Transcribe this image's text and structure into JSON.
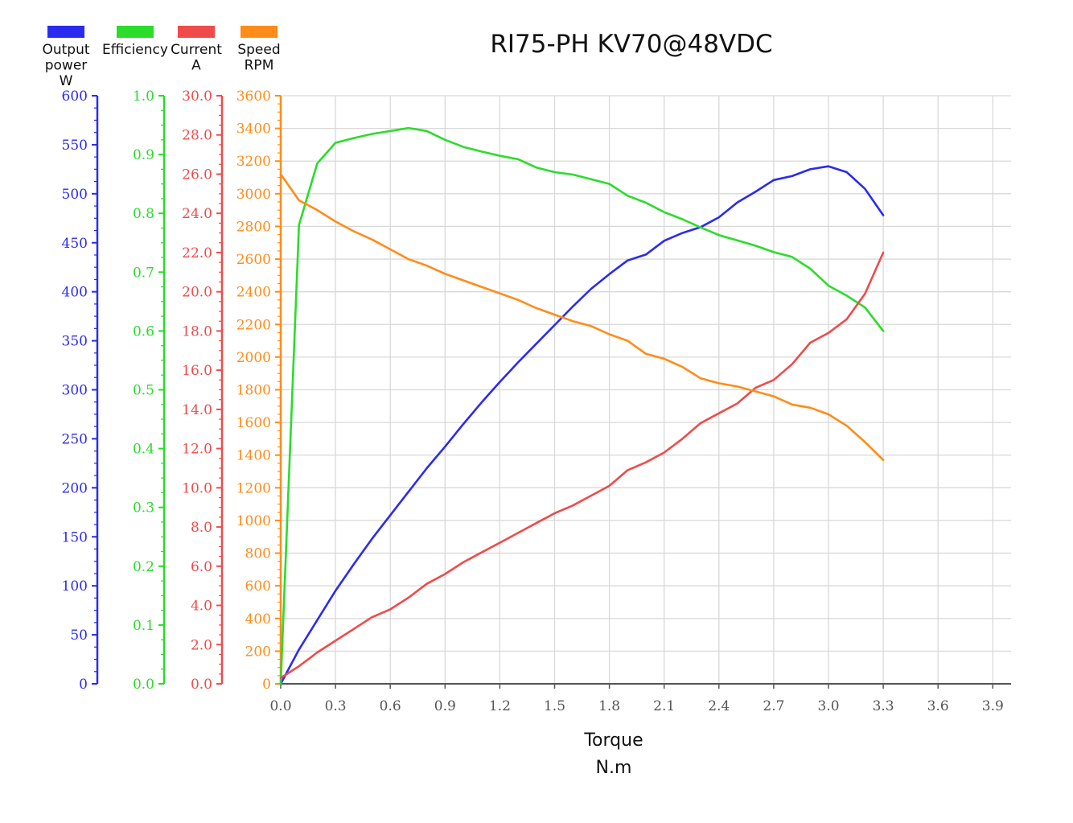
{
  "chart_data": {
    "type": "line",
    "title": "RI75-PH KV70@48VDC",
    "xlabel": [
      "Torque",
      "N.m"
    ],
    "x_ticks": [
      "0.0",
      "0.3",
      "0.6",
      "0.9",
      "1.2",
      "1.5",
      "1.8",
      "2.1",
      "2.4",
      "2.7",
      "3.0",
      "3.3",
      "3.6",
      "3.9"
    ],
    "xlim": [
      0,
      4.0
    ],
    "grid": true,
    "legend_position": "top-left",
    "axes": [
      {
        "id": "power",
        "label_lines": [
          "Output",
          "power",
          "W"
        ],
        "color": "#2b2bf0",
        "ylim": [
          0,
          600
        ],
        "ticks": [
          "0",
          "50",
          "100",
          "150",
          "200",
          "250",
          "300",
          "350",
          "400",
          "450",
          "500",
          "550",
          "600"
        ]
      },
      {
        "id": "efficiency",
        "label_lines": [
          "Efficiency"
        ],
        "color": "#2bdc2b",
        "ylim": [
          0,
          1.0
        ],
        "ticks": [
          "0.0",
          "0.1",
          "0.2",
          "0.3",
          "0.4",
          "0.5",
          "0.6",
          "0.7",
          "0.8",
          "0.9",
          "1.0"
        ]
      },
      {
        "id": "current",
        "label_lines": [
          "Current",
          "A"
        ],
        "color": "#f04b4b",
        "ylim": [
          0,
          30
        ],
        "ticks": [
          "0.0",
          "2.0",
          "4.0",
          "6.0",
          "8.0",
          "10.0",
          "12.0",
          "14.0",
          "16.0",
          "18.0",
          "20.0",
          "22.0",
          "24.0",
          "26.0",
          "28.0",
          "30.0"
        ]
      },
      {
        "id": "speed",
        "label_lines": [
          "Speed",
          "RPM"
        ],
        "color": "#ff8c1a",
        "ylim": [
          0,
          3600
        ],
        "ticks": [
          "0",
          "200",
          "400",
          "600",
          "800",
          "1000",
          "1200",
          "1400",
          "1600",
          "1800",
          "2000",
          "2200",
          "2400",
          "2600",
          "2800",
          "3000",
          "3200",
          "3400",
          "3600"
        ]
      }
    ],
    "series": [
      {
        "name": "Output power",
        "axis": "power",
        "color": "#2b2bf0",
        "x": [
          0,
          0.1,
          0.2,
          0.3,
          0.4,
          0.5,
          0.6,
          0.7,
          0.8,
          0.9,
          1.0,
          1.1,
          1.2,
          1.3,
          1.4,
          1.5,
          1.6,
          1.7,
          1.8,
          1.9,
          2.0,
          2.1,
          2.2,
          2.3,
          2.4,
          2.5,
          2.6,
          2.7,
          2.8,
          2.9,
          3.0,
          3.1,
          3.2,
          3.3
        ],
        "y": [
          0,
          35,
          65,
          95,
          122,
          148,
          172,
          196,
          220,
          242,
          265,
          287,
          308,
          328,
          347,
          366,
          385,
          403,
          418,
          432,
          438,
          452,
          460,
          466,
          476,
          491,
          502,
          514,
          518,
          525,
          528,
          522,
          505,
          478
        ]
      },
      {
        "name": "Efficiency",
        "axis": "efficiency",
        "color": "#2bdc2b",
        "x": [
          0,
          0.1,
          0.2,
          0.3,
          0.4,
          0.5,
          0.6,
          0.7,
          0.8,
          0.9,
          1.0,
          1.1,
          1.2,
          1.3,
          1.4,
          1.5,
          1.6,
          1.7,
          1.8,
          1.9,
          2.0,
          2.1,
          2.2,
          2.3,
          2.4,
          2.5,
          2.6,
          2.7,
          2.8,
          2.9,
          3.0,
          3.1,
          3.2,
          3.3
        ],
        "y": [
          0,
          0.78,
          0.885,
          0.92,
          0.928,
          0.935,
          0.94,
          0.945,
          0.94,
          0.925,
          0.913,
          0.905,
          0.898,
          0.892,
          0.878,
          0.87,
          0.866,
          0.858,
          0.85,
          0.83,
          0.818,
          0.802,
          0.79,
          0.776,
          0.763,
          0.754,
          0.745,
          0.734,
          0.726,
          0.706,
          0.677,
          0.66,
          0.64,
          0.6
        ]
      },
      {
        "name": "Current",
        "axis": "current",
        "color": "#f04b4b",
        "x": [
          0,
          0.1,
          0.2,
          0.3,
          0.4,
          0.5,
          0.6,
          0.7,
          0.8,
          0.9,
          1.0,
          1.1,
          1.2,
          1.3,
          1.4,
          1.5,
          1.6,
          1.7,
          1.8,
          1.9,
          2.0,
          2.1,
          2.2,
          2.3,
          2.4,
          2.5,
          2.6,
          2.7,
          2.8,
          2.9,
          3.0,
          3.1,
          3.2,
          3.3
        ],
        "y": [
          0.3,
          0.9,
          1.6,
          2.2,
          2.8,
          3.4,
          3.8,
          4.4,
          5.1,
          5.6,
          6.2,
          6.7,
          7.2,
          7.7,
          8.2,
          8.7,
          9.1,
          9.6,
          10.1,
          10.9,
          11.3,
          11.8,
          12.5,
          13.3,
          13.8,
          14.3,
          15.1,
          15.5,
          16.3,
          17.4,
          17.9,
          18.6,
          19.9,
          22.0
        ]
      },
      {
        "name": "Speed",
        "axis": "speed",
        "color": "#ff8c1a",
        "x": [
          0,
          0.1,
          0.2,
          0.3,
          0.4,
          0.5,
          0.6,
          0.7,
          0.8,
          0.9,
          1.0,
          1.1,
          1.2,
          1.3,
          1.4,
          1.5,
          1.6,
          1.7,
          1.8,
          1.9,
          2.0,
          2.1,
          2.2,
          2.3,
          2.4,
          2.5,
          2.6,
          2.7,
          2.8,
          2.9,
          3.0,
          3.1,
          3.2,
          3.3
        ],
        "y": [
          3120,
          2960,
          2900,
          2830,
          2770,
          2720,
          2660,
          2600,
          2560,
          2510,
          2470,
          2430,
          2390,
          2350,
          2300,
          2260,
          2220,
          2190,
          2140,
          2100,
          2020,
          1990,
          1940,
          1870,
          1840,
          1820,
          1790,
          1760,
          1710,
          1690,
          1650,
          1580,
          1480,
          1370
        ]
      }
    ]
  }
}
